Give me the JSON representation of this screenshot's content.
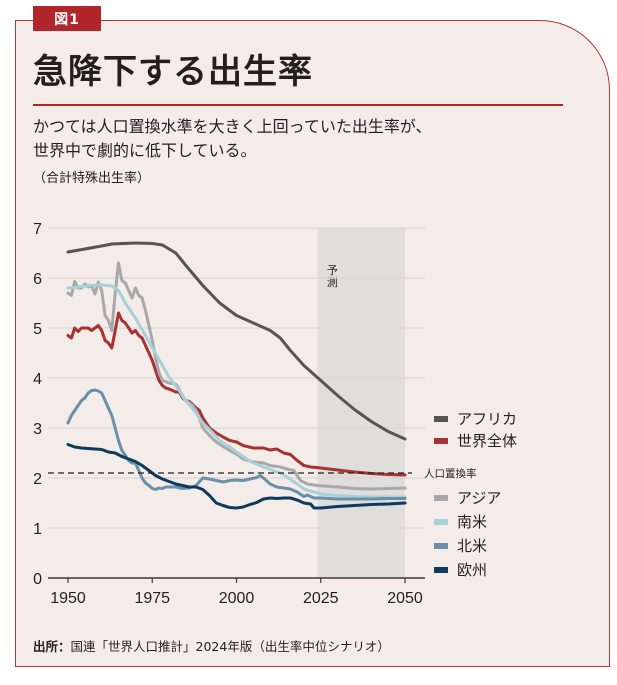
{
  "figure_tag": "図1",
  "title": "急降下する出生率",
  "subtitle_lines": [
    "かつては人口置換水準を大きく上回っていた出生率が、",
    "世界中で劇的に低下している。"
  ],
  "unit_label": "（合計特殊出生率）",
  "source_label": "出所：",
  "source_text": "国連「世界人口推計」2024年版（出生率中位シナリオ）",
  "colors": {
    "accent": "#b0262b",
    "background": "#f4ece9",
    "forecast_band": "#e0dedd"
  },
  "chart_data": {
    "type": "line",
    "title": "急降下する出生率",
    "xlabel": "",
    "ylabel": "合計特殊出生率",
    "xlim": [
      1950,
      2050
    ],
    "ylim": [
      0,
      7
    ],
    "x_ticks": [
      1950,
      1975,
      2000,
      2025,
      2050
    ],
    "y_ticks": [
      0,
      1,
      2,
      3,
      4,
      5,
      6,
      7
    ],
    "grid": true,
    "legend_position": "right",
    "forecast_region": {
      "from": 2024,
      "to": 2050,
      "label": "予測"
    },
    "reference_line": {
      "value": 2.1,
      "label": "人口置換率",
      "style": "dashed"
    },
    "series": [
      {
        "name": "アフリカ",
        "color": "#555555",
        "points": [
          [
            1950,
            6.52
          ],
          [
            1955,
            6.58
          ],
          [
            1960,
            6.64
          ],
          [
            1963,
            6.68
          ],
          [
            1970,
            6.7
          ],
          [
            1975,
            6.69
          ],
          [
            1978,
            6.66
          ],
          [
            1982,
            6.5
          ],
          [
            1985,
            6.25
          ],
          [
            1990,
            5.85
          ],
          [
            1995,
            5.5
          ],
          [
            2000,
            5.25
          ],
          [
            2005,
            5.1
          ],
          [
            2010,
            4.95
          ],
          [
            2013,
            4.8
          ],
          [
            2016,
            4.55
          ],
          [
            2020,
            4.25
          ],
          [
            2025,
            3.95
          ],
          [
            2030,
            3.65
          ],
          [
            2035,
            3.37
          ],
          [
            2040,
            3.13
          ],
          [
            2045,
            2.93
          ],
          [
            2050,
            2.78
          ]
        ]
      },
      {
        "name": "世界全体",
        "color": "#a83232",
        "points": [
          [
            1950,
            4.85
          ],
          [
            1951,
            4.8
          ],
          [
            1952,
            5.0
          ],
          [
            1953,
            4.93
          ],
          [
            1954,
            5.0
          ],
          [
            1956,
            5.0
          ],
          [
            1957,
            4.95
          ],
          [
            1959,
            5.05
          ],
          [
            1960,
            4.95
          ],
          [
            1961,
            4.75
          ],
          [
            1962,
            4.7
          ],
          [
            1963,
            4.6
          ],
          [
            1964,
            4.95
          ],
          [
            1965,
            5.3
          ],
          [
            1966,
            5.15
          ],
          [
            1967,
            5.1
          ],
          [
            1968,
            5.0
          ],
          [
            1969,
            4.9
          ],
          [
            1970,
            4.95
          ],
          [
            1971,
            4.85
          ],
          [
            1972,
            4.8
          ],
          [
            1973,
            4.65
          ],
          [
            1974,
            4.5
          ],
          [
            1975,
            4.35
          ],
          [
            1976,
            4.15
          ],
          [
            1977,
            3.95
          ],
          [
            1978,
            3.85
          ],
          [
            1979,
            3.8
          ],
          [
            1980,
            3.78
          ],
          [
            1981,
            3.75
          ],
          [
            1982,
            3.72
          ],
          [
            1983,
            3.72
          ],
          [
            1984,
            3.6
          ],
          [
            1985,
            3.55
          ],
          [
            1986,
            3.53
          ],
          [
            1987,
            3.47
          ],
          [
            1988,
            3.4
          ],
          [
            1989,
            3.35
          ],
          [
            1990,
            3.2
          ],
          [
            1992,
            3.0
          ],
          [
            1994,
            2.9
          ],
          [
            1996,
            2.82
          ],
          [
            1998,
            2.75
          ],
          [
            2000,
            2.72
          ],
          [
            2002,
            2.65
          ],
          [
            2005,
            2.6
          ],
          [
            2008,
            2.6
          ],
          [
            2010,
            2.56
          ],
          [
            2012,
            2.58
          ],
          [
            2014,
            2.5
          ],
          [
            2016,
            2.47
          ],
          [
            2018,
            2.35
          ],
          [
            2020,
            2.25
          ],
          [
            2022,
            2.22
          ],
          [
            2025,
            2.2
          ],
          [
            2030,
            2.16
          ],
          [
            2035,
            2.12
          ],
          [
            2040,
            2.09
          ],
          [
            2045,
            2.07
          ],
          [
            2050,
            2.06
          ]
        ]
      },
      {
        "name": "アジア",
        "color": "#a8a8aa",
        "points": [
          [
            1950,
            5.7
          ],
          [
            1951,
            5.65
          ],
          [
            1952,
            5.93
          ],
          [
            1953,
            5.8
          ],
          [
            1954,
            5.8
          ],
          [
            1955,
            5.88
          ],
          [
            1956,
            5.82
          ],
          [
            1957,
            5.85
          ],
          [
            1958,
            5.68
          ],
          [
            1959,
            5.92
          ],
          [
            1960,
            5.75
          ],
          [
            1961,
            5.25
          ],
          [
            1962,
            5.15
          ],
          [
            1963,
            4.95
          ],
          [
            1964,
            5.7
          ],
          [
            1965,
            6.3
          ],
          [
            1966,
            5.95
          ],
          [
            1967,
            5.9
          ],
          [
            1968,
            5.75
          ],
          [
            1969,
            5.6
          ],
          [
            1970,
            5.8
          ],
          [
            1971,
            5.65
          ],
          [
            1972,
            5.6
          ],
          [
            1973,
            5.35
          ],
          [
            1974,
            5.05
          ],
          [
            1975,
            4.75
          ],
          [
            1976,
            4.4
          ],
          [
            1977,
            4.1
          ],
          [
            1978,
            3.95
          ],
          [
            1979,
            3.93
          ],
          [
            1980,
            3.9
          ],
          [
            1982,
            3.88
          ],
          [
            1983,
            3.78
          ],
          [
            1984,
            3.62
          ],
          [
            1985,
            3.55
          ],
          [
            1986,
            3.5
          ],
          [
            1987,
            3.45
          ],
          [
            1988,
            3.35
          ],
          [
            1989,
            3.2
          ],
          [
            1990,
            3.0
          ],
          [
            1992,
            2.85
          ],
          [
            1994,
            2.72
          ],
          [
            1996,
            2.63
          ],
          [
            1998,
            2.55
          ],
          [
            2000,
            2.48
          ],
          [
            2002,
            2.38
          ],
          [
            2005,
            2.32
          ],
          [
            2008,
            2.3
          ],
          [
            2010,
            2.25
          ],
          [
            2013,
            2.22
          ],
          [
            2015,
            2.18
          ],
          [
            2017,
            2.15
          ],
          [
            2019,
            1.95
          ],
          [
            2021,
            1.88
          ],
          [
            2024,
            1.85
          ],
          [
            2030,
            1.82
          ],
          [
            2035,
            1.79
          ],
          [
            2040,
            1.78
          ],
          [
            2045,
            1.79
          ],
          [
            2050,
            1.8
          ]
        ]
      },
      {
        "name": "南米",
        "color": "#a6d1d8",
        "points": [
          [
            1950,
            5.8
          ],
          [
            1953,
            5.82
          ],
          [
            1956,
            5.85
          ],
          [
            1960,
            5.86
          ],
          [
            1963,
            5.84
          ],
          [
            1965,
            5.75
          ],
          [
            1967,
            5.5
          ],
          [
            1970,
            5.2
          ],
          [
            1973,
            4.85
          ],
          [
            1975,
            4.6
          ],
          [
            1978,
            4.25
          ],
          [
            1980,
            4.02
          ],
          [
            1983,
            3.75
          ],
          [
            1985,
            3.55
          ],
          [
            1988,
            3.3
          ],
          [
            1990,
            3.1
          ],
          [
            1993,
            2.9
          ],
          [
            1995,
            2.75
          ],
          [
            1998,
            2.62
          ],
          [
            2000,
            2.52
          ],
          [
            2003,
            2.38
          ],
          [
            2005,
            2.3
          ],
          [
            2008,
            2.22
          ],
          [
            2010,
            2.17
          ],
          [
            2013,
            2.1
          ],
          [
            2015,
            2.02
          ],
          [
            2018,
            1.88
          ],
          [
            2020,
            1.78
          ],
          [
            2023,
            1.72
          ],
          [
            2025,
            1.68
          ],
          [
            2030,
            1.65
          ],
          [
            2035,
            1.63
          ],
          [
            2040,
            1.62
          ],
          [
            2045,
            1.62
          ],
          [
            2050,
            1.62
          ]
        ]
      },
      {
        "name": "北米",
        "color": "#6a8fa9",
        "points": [
          [
            1950,
            3.1
          ],
          [
            1951,
            3.25
          ],
          [
            1952,
            3.35
          ],
          [
            1953,
            3.45
          ],
          [
            1954,
            3.55
          ],
          [
            1955,
            3.6
          ],
          [
            1956,
            3.7
          ],
          [
            1957,
            3.75
          ],
          [
            1958,
            3.76
          ],
          [
            1959,
            3.74
          ],
          [
            1960,
            3.7
          ],
          [
            1961,
            3.55
          ],
          [
            1962,
            3.4
          ],
          [
            1963,
            3.25
          ],
          [
            1964,
            3.0
          ],
          [
            1965,
            2.75
          ],
          [
            1966,
            2.55
          ],
          [
            1967,
            2.45
          ],
          [
            1968,
            2.35
          ],
          [
            1969,
            2.3
          ],
          [
            1970,
            2.3
          ],
          [
            1971,
            2.15
          ],
          [
            1972,
            2.0
          ],
          [
            1973,
            1.9
          ],
          [
            1974,
            1.85
          ],
          [
            1975,
            1.79
          ],
          [
            1976,
            1.77
          ],
          [
            1977,
            1.8
          ],
          [
            1978,
            1.79
          ],
          [
            1979,
            1.82
          ],
          [
            1980,
            1.82
          ],
          [
            1982,
            1.82
          ],
          [
            1984,
            1.79
          ],
          [
            1986,
            1.8
          ],
          [
            1988,
            1.85
          ],
          [
            1990,
            2.0
          ],
          [
            1992,
            1.98
          ],
          [
            1994,
            1.95
          ],
          [
            1996,
            1.92
          ],
          [
            1998,
            1.95
          ],
          [
            2000,
            1.96
          ],
          [
            2002,
            1.95
          ],
          [
            2004,
            1.98
          ],
          [
            2006,
            2.01
          ],
          [
            2007,
            2.05
          ],
          [
            2008,
            2.0
          ],
          [
            2010,
            1.88
          ],
          [
            2012,
            1.82
          ],
          [
            2014,
            1.8
          ],
          [
            2016,
            1.78
          ],
          [
            2018,
            1.72
          ],
          [
            2020,
            1.63
          ],
          [
            2021,
            1.66
          ],
          [
            2023,
            1.6
          ],
          [
            2025,
            1.6
          ],
          [
            2030,
            1.58
          ],
          [
            2035,
            1.58
          ],
          [
            2040,
            1.58
          ],
          [
            2045,
            1.59
          ],
          [
            2050,
            1.59
          ]
        ]
      },
      {
        "name": "欧州",
        "color": "#0e3a5c",
        "points": [
          [
            1950,
            2.67
          ],
          [
            1952,
            2.62
          ],
          [
            1954,
            2.6
          ],
          [
            1956,
            2.59
          ],
          [
            1958,
            2.58
          ],
          [
            1960,
            2.57
          ],
          [
            1962,
            2.52
          ],
          [
            1964,
            2.5
          ],
          [
            1966,
            2.43
          ],
          [
            1968,
            2.38
          ],
          [
            1970,
            2.33
          ],
          [
            1972,
            2.25
          ],
          [
            1974,
            2.15
          ],
          [
            1976,
            2.05
          ],
          [
            1978,
            1.98
          ],
          [
            1980,
            1.93
          ],
          [
            1982,
            1.88
          ],
          [
            1984,
            1.85
          ],
          [
            1986,
            1.82
          ],
          [
            1988,
            1.82
          ],
          [
            1990,
            1.77
          ],
          [
            1992,
            1.65
          ],
          [
            1994,
            1.5
          ],
          [
            1996,
            1.45
          ],
          [
            1998,
            1.41
          ],
          [
            2000,
            1.4
          ],
          [
            2002,
            1.42
          ],
          [
            2004,
            1.47
          ],
          [
            2006,
            1.51
          ],
          [
            2008,
            1.58
          ],
          [
            2010,
            1.6
          ],
          [
            2012,
            1.59
          ],
          [
            2014,
            1.6
          ],
          [
            2016,
            1.6
          ],
          [
            2018,
            1.56
          ],
          [
            2020,
            1.5
          ],
          [
            2022,
            1.48
          ],
          [
            2023,
            1.4
          ],
          [
            2025,
            1.4
          ],
          [
            2030,
            1.43
          ],
          [
            2035,
            1.45
          ],
          [
            2040,
            1.47
          ],
          [
            2045,
            1.48
          ],
          [
            2050,
            1.5
          ]
        ]
      }
    ]
  }
}
